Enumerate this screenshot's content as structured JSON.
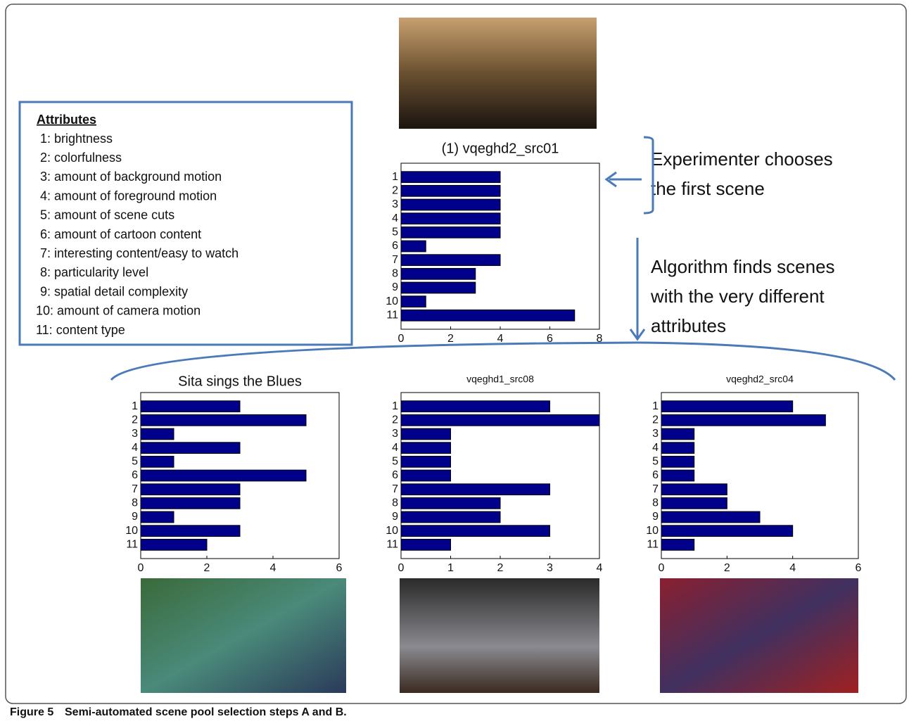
{
  "chart_data": [
    {
      "type": "hbar",
      "title": "(1) vqeghd2_src01",
      "categories": [
        "1",
        "2",
        "3",
        "4",
        "5",
        "6",
        "7",
        "8",
        "9",
        "10",
        "11"
      ],
      "values": [
        4,
        4,
        4,
        4,
        4,
        1,
        4,
        3,
        3,
        1,
        7
      ],
      "color": "#00008b",
      "xlim": [
        0,
        8
      ],
      "xticks": [
        0,
        2,
        4,
        6,
        8
      ]
    },
    {
      "type": "hbar",
      "title": "Sita sings the Blues",
      "categories": [
        "1",
        "2",
        "3",
        "4",
        "5",
        "6",
        "7",
        "8",
        "9",
        "10",
        "11"
      ],
      "values": [
        3,
        5,
        1,
        3,
        1,
        5,
        3,
        3,
        1,
        3,
        2
      ],
      "color": "#00008b",
      "xlim": [
        0,
        6
      ],
      "xticks": [
        0,
        2,
        4,
        6
      ]
    },
    {
      "type": "hbar",
      "title": "vqeghd1_src08",
      "categories": [
        "1",
        "2",
        "3",
        "4",
        "5",
        "6",
        "7",
        "8",
        "9",
        "10",
        "11"
      ],
      "values": [
        3,
        4,
        1,
        1,
        1,
        1,
        3,
        2,
        2,
        3,
        1
      ],
      "color": "#00008b",
      "xlim": [
        0,
        4
      ],
      "xticks": [
        0,
        1,
        2,
        3,
        4
      ]
    },
    {
      "type": "hbar",
      "title": "vqeghd2_src04",
      "categories": [
        "1",
        "2",
        "3",
        "4",
        "5",
        "6",
        "7",
        "8",
        "9",
        "10",
        "11"
      ],
      "values": [
        4,
        5,
        1,
        1,
        1,
        1,
        2,
        2,
        3,
        4,
        1
      ],
      "color": "#00008b",
      "xlim": [
        0,
        6
      ],
      "xticks": [
        0,
        2,
        4,
        6
      ]
    }
  ],
  "attributes": {
    "title": "Attributes",
    "items": [
      "1: brightness",
      "2: colorfulness",
      "3: amount of background motion",
      "4: amount of foreground motion",
      "5: amount of scene cuts",
      "6: amount of cartoon content",
      "7: interesting content/easy to watch",
      "8: particularity level",
      "9: spatial detail complexity",
      "10: amount of camera motion",
      "11: content type"
    ]
  },
  "annotations": [
    [
      "Experimenter chooses",
      "the first scene"
    ],
    [
      "Algorithm finds scenes",
      "with the very different",
      "attributes"
    ]
  ],
  "caption": {
    "label": "Figure 5",
    "text": "Semi-automated scene pool selection steps A and B."
  }
}
